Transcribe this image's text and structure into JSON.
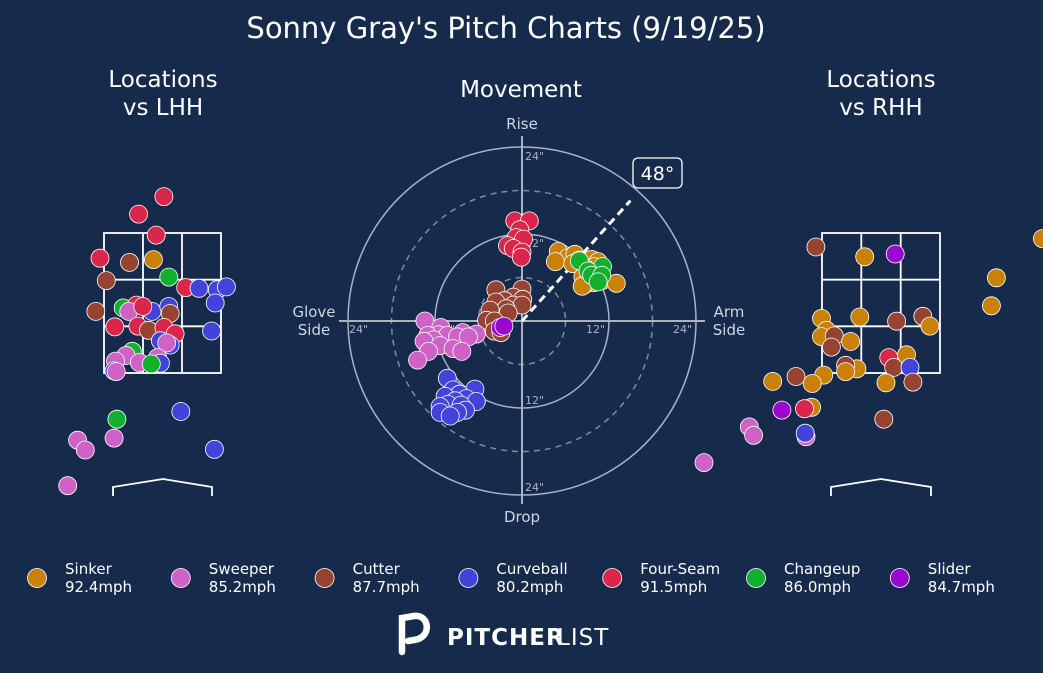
{
  "colors": {
    "background": "#162a4c",
    "grid": "#a9b3c2",
    "zone": "#ffffff",
    "muted_text": "#cfd6e0",
    "Sinker": "#c98107",
    "Sweeper": "#ce62c6",
    "Cutter": "#974331",
    "Curveball": "#4243d8",
    "Four-Seam": "#d9264a",
    "Changeup": "#12b12d",
    "Slider": "#9a08cf"
  },
  "title": "Sonny Gray's Pitch Charts (9/19/25)",
  "brand": {
    "name_bold": "PITCHER",
    "name_light": "LIST",
    "icon": "pitcherlist-logo-icon"
  },
  "chart_data": [
    {
      "type": "scatter",
      "title": "Locations\nvs LHH",
      "title_lines": [
        "Locations",
        "vs LHH"
      ],
      "xlabel": "",
      "ylabel": "",
      "grid": false,
      "strike_zone": true,
      "x_unit": "feet from center of plate (catcher view)",
      "y_unit": "feet above ground",
      "xlim": [
        -2.5,
        2.5
      ],
      "ylim": [
        -0.1,
        4.9
      ],
      "points": [
        {
          "pitch": "Four-Seam",
          "x": 0.02,
          "y": 4.12
        },
        {
          "pitch": "Four-Seam",
          "x": -0.34,
          "y": 3.87
        },
        {
          "pitch": "Four-Seam",
          "x": -0.09,
          "y": 3.57
        },
        {
          "pitch": "Four-Seam",
          "x": -0.89,
          "y": 3.24
        },
        {
          "pitch": "Cutter",
          "x": -0.47,
          "y": 3.18
        },
        {
          "pitch": "Sinker",
          "x": -0.13,
          "y": 3.22
        },
        {
          "pitch": "Changeup",
          "x": 0.09,
          "y": 2.97
        },
        {
          "pitch": "Cutter",
          "x": -0.8,
          "y": 2.92
        },
        {
          "pitch": "Four-Seam",
          "x": 0.33,
          "y": 2.82
        },
        {
          "pitch": "Curveball",
          "x": 0.52,
          "y": 2.81
        },
        {
          "pitch": "Curveball",
          "x": 0.78,
          "y": 2.79
        },
        {
          "pitch": "Curveball",
          "x": 0.91,
          "y": 2.83
        },
        {
          "pitch": "Curveball",
          "x": 0.75,
          "y": 2.6
        },
        {
          "pitch": "Cutter",
          "x": -0.95,
          "y": 2.48
        },
        {
          "pitch": "Changeup",
          "x": -0.56,
          "y": 2.53
        },
        {
          "pitch": "Four-Seam",
          "x": -0.37,
          "y": 2.57
        },
        {
          "pitch": "Sweeper",
          "x": -0.48,
          "y": 2.48
        },
        {
          "pitch": "Curveball",
          "x": -0.15,
          "y": 2.48
        },
        {
          "pitch": "Four-Seam",
          "x": -0.28,
          "y": 2.55
        },
        {
          "pitch": "Curveball",
          "x": 0.09,
          "y": 2.55
        },
        {
          "pitch": "Cutter",
          "x": 0.11,
          "y": 2.45
        },
        {
          "pitch": "Four-Seam",
          "x": -0.68,
          "y": 2.26
        },
        {
          "pitch": "Four-Seam",
          "x": -0.35,
          "y": 2.27
        },
        {
          "pitch": "Cutter",
          "x": -0.2,
          "y": 2.21
        },
        {
          "pitch": "Four-Seam",
          "x": 0.02,
          "y": 2.25
        },
        {
          "pitch": "Four-Seam",
          "x": 0.18,
          "y": 2.16
        },
        {
          "pitch": "Curveball",
          "x": 0.7,
          "y": 2.2
        },
        {
          "pitch": "Curveball",
          "x": 0.11,
          "y": 2.0
        },
        {
          "pitch": "Curveball",
          "x": -0.03,
          "y": 2.06
        },
        {
          "pitch": "Sweeper",
          "x": 0.06,
          "y": 2.03
        },
        {
          "pitch": "Changeup",
          "x": -0.43,
          "y": 1.91
        },
        {
          "pitch": "Sweeper",
          "x": -0.52,
          "y": 1.85
        },
        {
          "pitch": "Sweeper",
          "x": -0.67,
          "y": 1.77
        },
        {
          "pitch": "Sweeper",
          "x": -0.33,
          "y": 1.75
        },
        {
          "pitch": "Sweeper",
          "x": -0.07,
          "y": 1.82
        },
        {
          "pitch": "Curveball",
          "x": -0.03,
          "y": 1.74
        },
        {
          "pitch": "Changeup",
          "x": -0.16,
          "y": 1.73
        },
        {
          "pitch": "Curveball",
          "x": -0.69,
          "y": 1.63
        },
        {
          "pitch": "Sweeper",
          "x": -0.66,
          "y": 1.62
        },
        {
          "pitch": "Changeup",
          "x": -0.65,
          "y": 0.94
        },
        {
          "pitch": "Curveball",
          "x": 0.26,
          "y": 1.05
        },
        {
          "pitch": "Sweeper",
          "x": -1.21,
          "y": 0.64
        },
        {
          "pitch": "Sweeper",
          "x": -0.69,
          "y": 0.67
        },
        {
          "pitch": "Sweeper",
          "x": -1.1,
          "y": 0.5
        },
        {
          "pitch": "Curveball",
          "x": 0.74,
          "y": 0.51
        },
        {
          "pitch": "Sweeper",
          "x": -1.35,
          "y": -0.01
        }
      ]
    },
    {
      "type": "scatter",
      "title": "Movement",
      "xlabel": "",
      "ylabel": "",
      "grid": true,
      "polar": true,
      "x_unit": "inches horizontal break (arm side positive)",
      "y_unit": "inches induced vertical break",
      "direction_labels": {
        "top": "Rise",
        "bottom": "Drop",
        "left": [
          "Glove",
          "Side"
        ],
        "right": [
          "Arm",
          "Side"
        ]
      },
      "ring_labels": {
        "top": "24\"",
        "upper_inner": "12\"",
        "lower_inner": "12\"",
        "bottom": "24\"",
        "left_outer": "24\"",
        "left_inner": "12\"",
        "right_inner": "12\"",
        "right_outer": "24\""
      },
      "arm_angle_label": "48°",
      "arm_angle_deg": 48,
      "points": [
        {
          "pitch": "Four-Seam",
          "x": -1.0,
          "y": 13.8
        },
        {
          "pitch": "Four-Seam",
          "x": 1.0,
          "y": 13.8
        },
        {
          "pitch": "Four-Seam",
          "x": -0.3,
          "y": 12.6
        },
        {
          "pitch": "Four-Seam",
          "x": -0.8,
          "y": 11.5
        },
        {
          "pitch": "Four-Seam",
          "x": 0.2,
          "y": 11.3
        },
        {
          "pitch": "Four-Seam",
          "x": -2.0,
          "y": 10.4
        },
        {
          "pitch": "Four-Seam",
          "x": -1.2,
          "y": 10.0
        },
        {
          "pitch": "Four-Seam",
          "x": 0.0,
          "y": 9.5
        },
        {
          "pitch": "Four-Seam",
          "x": -0.1,
          "y": 8.8
        },
        {
          "pitch": "Sinker",
          "x": 5.0,
          "y": 9.6
        },
        {
          "pitch": "Sinker",
          "x": 6.3,
          "y": 8.7
        },
        {
          "pitch": "Sinker",
          "x": 4.6,
          "y": 8.2
        },
        {
          "pitch": "Sinker",
          "x": 7.3,
          "y": 9.2
        },
        {
          "pitch": "Sinker",
          "x": 7.9,
          "y": 8.4
        },
        {
          "pitch": "Sinker",
          "x": 9.6,
          "y": 8.5
        },
        {
          "pitch": "Sinker",
          "x": 7.0,
          "y": 7.9
        },
        {
          "pitch": "Sinker",
          "x": 10.5,
          "y": 8.2
        },
        {
          "pitch": "Sinker",
          "x": 10.0,
          "y": 7.5
        },
        {
          "pitch": "Sinker",
          "x": 8.8,
          "y": 7.2
        },
        {
          "pitch": "Sinker",
          "x": 10.6,
          "y": 6.8
        },
        {
          "pitch": "Sinker",
          "x": 8.4,
          "y": 6.1
        },
        {
          "pitch": "Sinker",
          "x": 9.6,
          "y": 6.1
        },
        {
          "pitch": "Sinker",
          "x": 10.2,
          "y": 5.8
        },
        {
          "pitch": "Sinker",
          "x": 11.1,
          "y": 5.6
        },
        {
          "pitch": "Sinker",
          "x": 9.9,
          "y": 5.3
        },
        {
          "pitch": "Sinker",
          "x": 8.6,
          "y": 5.0
        },
        {
          "pitch": "Sinker",
          "x": 8.3,
          "y": 4.8
        },
        {
          "pitch": "Sinker",
          "x": 13.0,
          "y": 5.2
        },
        {
          "pitch": "Changeup",
          "x": 7.9,
          "y": 8.3
        },
        {
          "pitch": "Changeup",
          "x": 11.1,
          "y": 7.5
        },
        {
          "pitch": "Changeup",
          "x": 9.1,
          "y": 6.9
        },
        {
          "pitch": "Changeup",
          "x": 9.6,
          "y": 6.3
        },
        {
          "pitch": "Changeup",
          "x": 11.0,
          "y": 6.3
        },
        {
          "pitch": "Changeup",
          "x": 10.5,
          "y": 5.4
        },
        {
          "pitch": "Cutter",
          "x": -3.6,
          "y": 4.3
        },
        {
          "pitch": "Cutter",
          "x": 0.0,
          "y": 4.4
        },
        {
          "pitch": "Cutter",
          "x": -1.2,
          "y": 3.3
        },
        {
          "pitch": "Cutter",
          "x": 0.1,
          "y": 3.0
        },
        {
          "pitch": "Cutter",
          "x": -2.4,
          "y": 2.8
        },
        {
          "pitch": "Cutter",
          "x": -3.6,
          "y": 2.6
        },
        {
          "pitch": "Cutter",
          "x": -1.2,
          "y": 2.2
        },
        {
          "pitch": "Cutter",
          "x": 0.0,
          "y": 2.2
        },
        {
          "pitch": "Cutter",
          "x": -2.2,
          "y": 1.7
        },
        {
          "pitch": "Cutter",
          "x": -4.4,
          "y": 1.5
        },
        {
          "pitch": "Cutter",
          "x": -1.9,
          "y": 1.1
        },
        {
          "pitch": "Cutter",
          "x": -4.9,
          "y": 0.1
        },
        {
          "pitch": "Cutter",
          "x": -3.8,
          "y": 0.0
        },
        {
          "pitch": "Cutter",
          "x": -3.8,
          "y": -1.4
        },
        {
          "pitch": "Cutter",
          "x": -2.9,
          "y": -1.6
        },
        {
          "pitch": "Slider",
          "x": -3.0,
          "y": -0.9
        },
        {
          "pitch": "Slider",
          "x": -2.5,
          "y": -0.7
        },
        {
          "pitch": "Sweeper",
          "x": -13.4,
          "y": 0.0
        },
        {
          "pitch": "Sweeper",
          "x": -11.2,
          "y": -0.9
        },
        {
          "pitch": "Sweeper",
          "x": -8.2,
          "y": -1.6
        },
        {
          "pitch": "Sweeper",
          "x": -6.3,
          "y": -1.8
        },
        {
          "pitch": "Sweeper",
          "x": -11.5,
          "y": -1.9
        },
        {
          "pitch": "Sweeper",
          "x": -10.3,
          "y": -2.0
        },
        {
          "pitch": "Sweeper",
          "x": -13.0,
          "y": -2.0
        },
        {
          "pitch": "Sweeper",
          "x": -8.9,
          "y": -2.2
        },
        {
          "pitch": "Sweeper",
          "x": -7.4,
          "y": -2.2
        },
        {
          "pitch": "Sweeper",
          "x": -12.2,
          "y": -2.6
        },
        {
          "pitch": "Sweeper",
          "x": -13.5,
          "y": -2.8
        },
        {
          "pitch": "Sweeper",
          "x": -11.3,
          "y": -3.4
        },
        {
          "pitch": "Sweeper",
          "x": -9.5,
          "y": -3.8
        },
        {
          "pitch": "Sweeper",
          "x": -12.9,
          "y": -4.2
        },
        {
          "pitch": "Sweeper",
          "x": -8.3,
          "y": -4.2
        },
        {
          "pitch": "Sweeper",
          "x": -14.4,
          "y": -5.4
        },
        {
          "pitch": "Curveball",
          "x": -10.3,
          "y": -7.9
        },
        {
          "pitch": "Curveball",
          "x": -6.5,
          "y": -9.4
        },
        {
          "pitch": "Curveball",
          "x": -9.5,
          "y": -9.5
        },
        {
          "pitch": "Curveball",
          "x": -8.6,
          "y": -10.1
        },
        {
          "pitch": "Curveball",
          "x": -10.6,
          "y": -10.4
        },
        {
          "pitch": "Curveball",
          "x": -7.7,
          "y": -10.7
        },
        {
          "pitch": "Curveball",
          "x": -9.2,
          "y": -11.0
        },
        {
          "pitch": "Curveball",
          "x": -6.3,
          "y": -11.1
        },
        {
          "pitch": "Curveball",
          "x": -10.2,
          "y": -11.5
        },
        {
          "pitch": "Curveball",
          "x": -8.4,
          "y": -11.6
        },
        {
          "pitch": "Curveball",
          "x": -11.3,
          "y": -11.8
        },
        {
          "pitch": "Curveball",
          "x": -7.8,
          "y": -12.3
        },
        {
          "pitch": "Curveball",
          "x": -11.3,
          "y": -12.6
        },
        {
          "pitch": "Curveball",
          "x": -8.9,
          "y": -12.6
        },
        {
          "pitch": "Curveball",
          "x": -9.9,
          "y": -13.1
        }
      ]
    },
    {
      "type": "scatter",
      "title": "Locations\nvs RHH",
      "title_lines": [
        "Locations",
        "vs RHH"
      ],
      "xlabel": "",
      "ylabel": "",
      "grid": false,
      "strike_zone": true,
      "x_unit": "feet from center of plate (catcher view)",
      "y_unit": "feet above ground",
      "xlim": [
        -2.5,
        2.5
      ],
      "ylim": [
        -0.1,
        4.9
      ],
      "points": [
        {
          "pitch": "Sinker",
          "x": 2.28,
          "y": 3.52
        },
        {
          "pitch": "Cutter",
          "x": -0.92,
          "y": 3.4
        },
        {
          "pitch": "Sinker",
          "x": -0.23,
          "y": 3.26
        },
        {
          "pitch": "Slider",
          "x": 0.2,
          "y": 3.3
        },
        {
          "pitch": "Sinker",
          "x": 1.63,
          "y": 2.96
        },
        {
          "pitch": "Sinker",
          "x": 1.56,
          "y": 2.56
        },
        {
          "pitch": "Cutter",
          "x": 0.59,
          "y": 2.41
        },
        {
          "pitch": "Cutter",
          "x": 0.22,
          "y": 2.34
        },
        {
          "pitch": "Sinker",
          "x": -0.3,
          "y": 2.4
        },
        {
          "pitch": "Sinker",
          "x": -0.84,
          "y": 2.38
        },
        {
          "pitch": "Sinker",
          "x": -0.77,
          "y": 2.21
        },
        {
          "pitch": "Sinker",
          "x": 0.69,
          "y": 2.27
        },
        {
          "pitch": "Sinker",
          "x": -0.84,
          "y": 2.12
        },
        {
          "pitch": "Cutter",
          "x": -0.66,
          "y": 2.13
        },
        {
          "pitch": "Sinker",
          "x": -0.43,
          "y": 2.05
        },
        {
          "pitch": "Cutter",
          "x": -0.7,
          "y": 1.97
        },
        {
          "pitch": "Sinker",
          "x": 0.36,
          "y": 1.86
        },
        {
          "pitch": "Four-Seam",
          "x": 0.11,
          "y": 1.82
        },
        {
          "pitch": "Sinker",
          "x": -0.34,
          "y": 1.66
        },
        {
          "pitch": "Cutter",
          "x": -0.5,
          "y": 1.71
        },
        {
          "pitch": "Cutter",
          "x": 0.18,
          "y": 1.68
        },
        {
          "pitch": "Curveball",
          "x": 0.41,
          "y": 1.68
        },
        {
          "pitch": "Sinker",
          "x": -0.81,
          "y": 1.57
        },
        {
          "pitch": "Sinker",
          "x": -0.5,
          "y": 1.62
        },
        {
          "pitch": "Cutter",
          "x": -1.2,
          "y": 1.55
        },
        {
          "pitch": "Sinker",
          "x": -1.53,
          "y": 1.48
        },
        {
          "pitch": "Sinker",
          "x": -0.97,
          "y": 1.45
        },
        {
          "pitch": "Sinker",
          "x": 0.07,
          "y": 1.46
        },
        {
          "pitch": "Cutter",
          "x": 0.45,
          "y": 1.47
        },
        {
          "pitch": "Sinker",
          "x": -0.98,
          "y": 1.11
        },
        {
          "pitch": "Four-Seam",
          "x": -1.08,
          "y": 1.09
        },
        {
          "pitch": "Slider",
          "x": -1.4,
          "y": 1.07
        },
        {
          "pitch": "Cutter",
          "x": 0.04,
          "y": 0.94
        },
        {
          "pitch": "Sweeper",
          "x": -1.86,
          "y": 0.83
        },
        {
          "pitch": "Sweeper",
          "x": -1.8,
          "y": 0.71
        },
        {
          "pitch": "Sweeper",
          "x": -1.06,
          "y": 0.69
        },
        {
          "pitch": "Curveball",
          "x": -1.07,
          "y": 0.74
        },
        {
          "pitch": "Sweeper",
          "x": -2.5,
          "y": 0.32
        }
      ]
    }
  ],
  "legend": [
    {
      "pitch": "Sinker",
      "label": "Sinker",
      "velo": "92.4mph"
    },
    {
      "pitch": "Sweeper",
      "label": "Sweeper",
      "velo": "85.2mph"
    },
    {
      "pitch": "Cutter",
      "label": "Cutter",
      "velo": "87.7mph"
    },
    {
      "pitch": "Curveball",
      "label": "Curveball",
      "velo": "80.2mph"
    },
    {
      "pitch": "Four-Seam",
      "label": "Four-Seam",
      "velo": "91.5mph"
    },
    {
      "pitch": "Changeup",
      "label": "Changeup",
      "velo": "86.0mph"
    },
    {
      "pitch": "Slider",
      "label": "Slider",
      "velo": "84.7mph"
    }
  ]
}
